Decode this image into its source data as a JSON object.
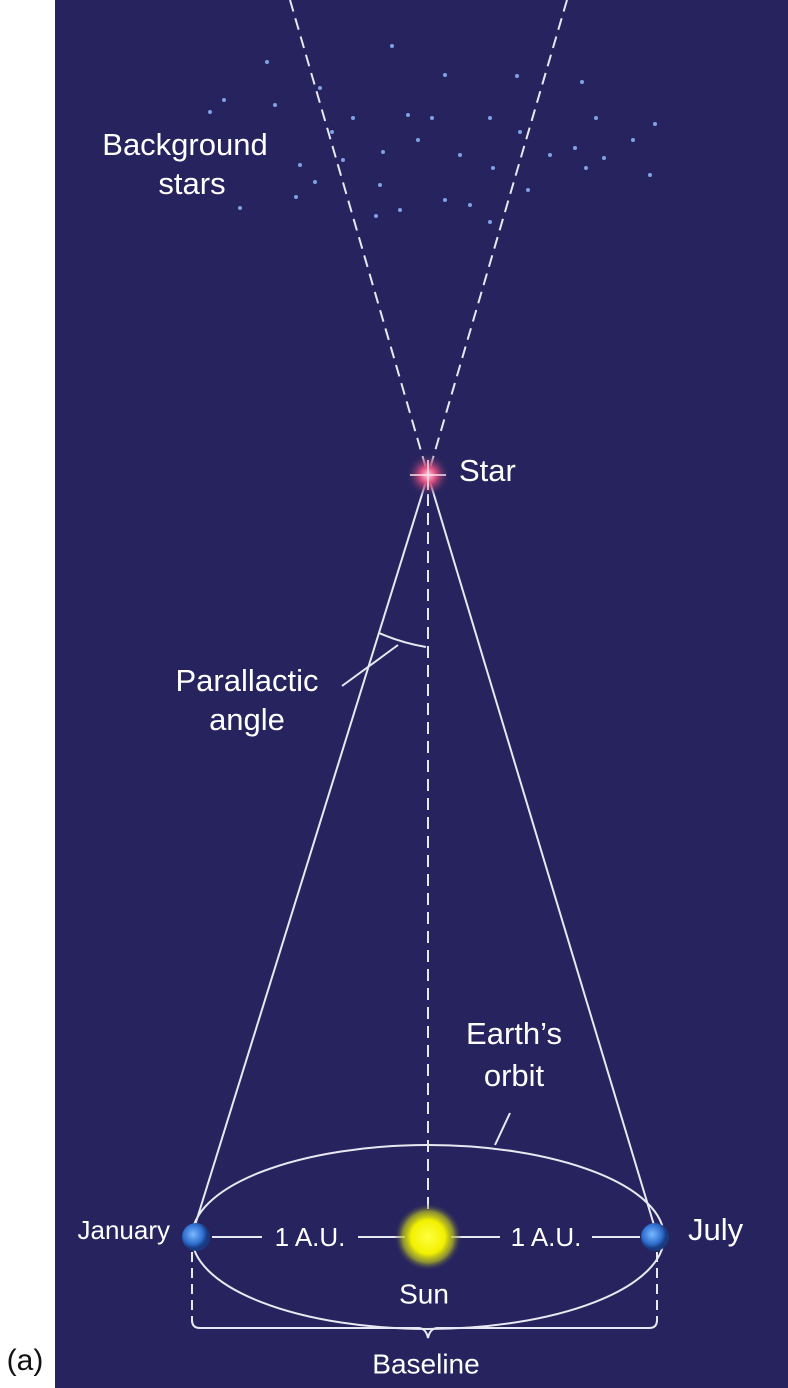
{
  "figure_label": "(a)",
  "labels": {
    "background_stars": [
      "Background",
      "stars"
    ],
    "star": "Star",
    "parallactic_angle": [
      "Parallactic",
      "angle"
    ],
    "earths_orbit": [
      "Earth’s",
      "orbit"
    ],
    "january": "January",
    "july": "July",
    "au_left": "1 A.U.",
    "au_right": "1 A.U.",
    "sun": "Sun",
    "baseline": "Baseline"
  }
}
